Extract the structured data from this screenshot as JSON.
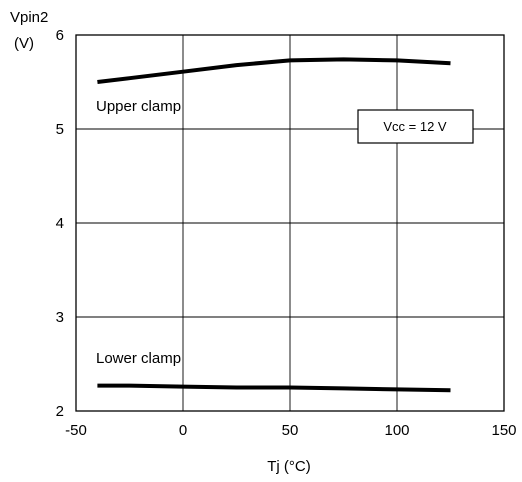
{
  "chart_data": {
    "type": "line",
    "title": "",
    "xlabel": "Tj  (°C)",
    "ylabel_line1": "Vpin2",
    "ylabel_line2": "(V)",
    "xlim": [
      -50,
      150
    ],
    "ylim": [
      2,
      6
    ],
    "x_ticks": [
      -50,
      0,
      50,
      100,
      150
    ],
    "x_tick_labels": [
      "-50",
      "0",
      "50",
      "100",
      "150"
    ],
    "y_ticks": [
      2,
      3,
      4,
      5,
      6
    ],
    "y_tick_labels": [
      "2",
      "3",
      "4",
      "5",
      "6"
    ],
    "grid": true,
    "series": [
      {
        "name": "Upper clamp",
        "x": [
          -40,
          -25,
          0,
          25,
          50,
          75,
          100,
          125
        ],
        "values": [
          5.5,
          5.54,
          5.61,
          5.68,
          5.73,
          5.74,
          5.73,
          5.7
        ]
      },
      {
        "name": "Lower clamp",
        "x": [
          -40,
          -25,
          0,
          25,
          50,
          75,
          100,
          125
        ],
        "values": [
          2.27,
          2.27,
          2.26,
          2.25,
          2.25,
          2.24,
          2.23,
          2.22
        ]
      }
    ],
    "annotations": [
      {
        "text": "Vcc = 12 V",
        "boxed": true
      }
    ],
    "colors": {
      "line": "#000000",
      "grid": "#000000",
      "background": "#ffffff"
    }
  }
}
